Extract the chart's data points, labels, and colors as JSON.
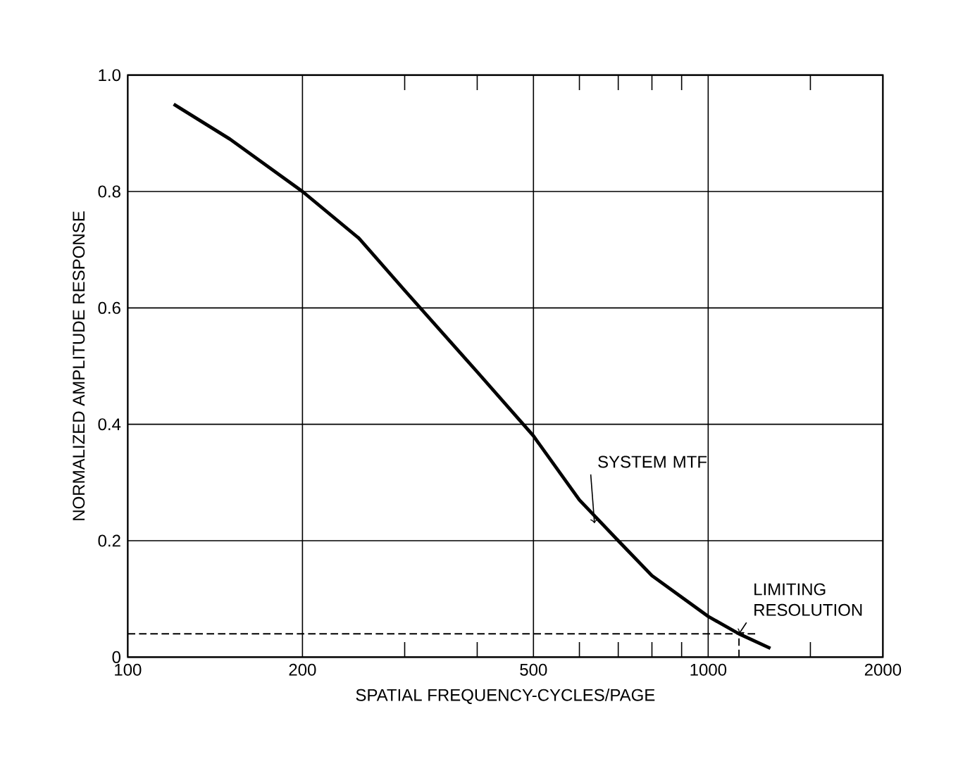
{
  "chart_data": {
    "type": "line",
    "xlabel": "SPATIAL FREQUENCY-CYCLES/PAGE",
    "ylabel": "NORMALIZED AMPLITUDE RESPONSE",
    "log": "x",
    "grid": true,
    "xlim": [
      100,
      2000
    ],
    "ylim": [
      0,
      1
    ],
    "xticks": [
      100,
      200,
      {
        "value": 300,
        "label": null
      },
      {
        "value": 400,
        "label": null
      },
      500,
      {
        "value": 600,
        "label": null
      },
      {
        "value": 700,
        "label": null
      },
      {
        "value": 800,
        "label": null
      },
      {
        "value": 900,
        "label": null
      },
      1000,
      {
        "value": 1500,
        "label": null
      },
      2000
    ],
    "yticks": [
      0,
      0.2,
      0.4,
      0.6,
      0.8,
      {
        "value": 1,
        "label": "1.0"
      }
    ],
    "series": [
      {
        "color": "#000000",
        "line_style": "solid",
        "x": [
          120,
          150,
          200,
          250,
          300,
          400,
          500,
          600,
          700,
          800,
          1000,
          1130,
          1280
        ],
        "values": [
          0.95,
          0.89,
          0.8,
          0.72,
          0.63,
          0.49,
          0.38,
          0.27,
          0.2,
          0.14,
          0.07,
          0.04,
          0.015
        ]
      },
      {
        "color": "#000000",
        "line_style": "dashed",
        "x": [
          100,
          1220
        ],
        "values": [
          0.04,
          0.04
        ]
      },
      {
        "color": "#000000",
        "line_style": "dashed",
        "x": [
          1130,
          1130
        ],
        "values": [
          0,
          0.04
        ]
      }
    ],
    "annotations": [
      {
        "text": "SYSTEM MTF",
        "x": 637,
        "y": 0.23
      },
      {
        "text": "LIMITING RESOLUTION",
        "x": 1130,
        "y": 0.04
      }
    ]
  }
}
